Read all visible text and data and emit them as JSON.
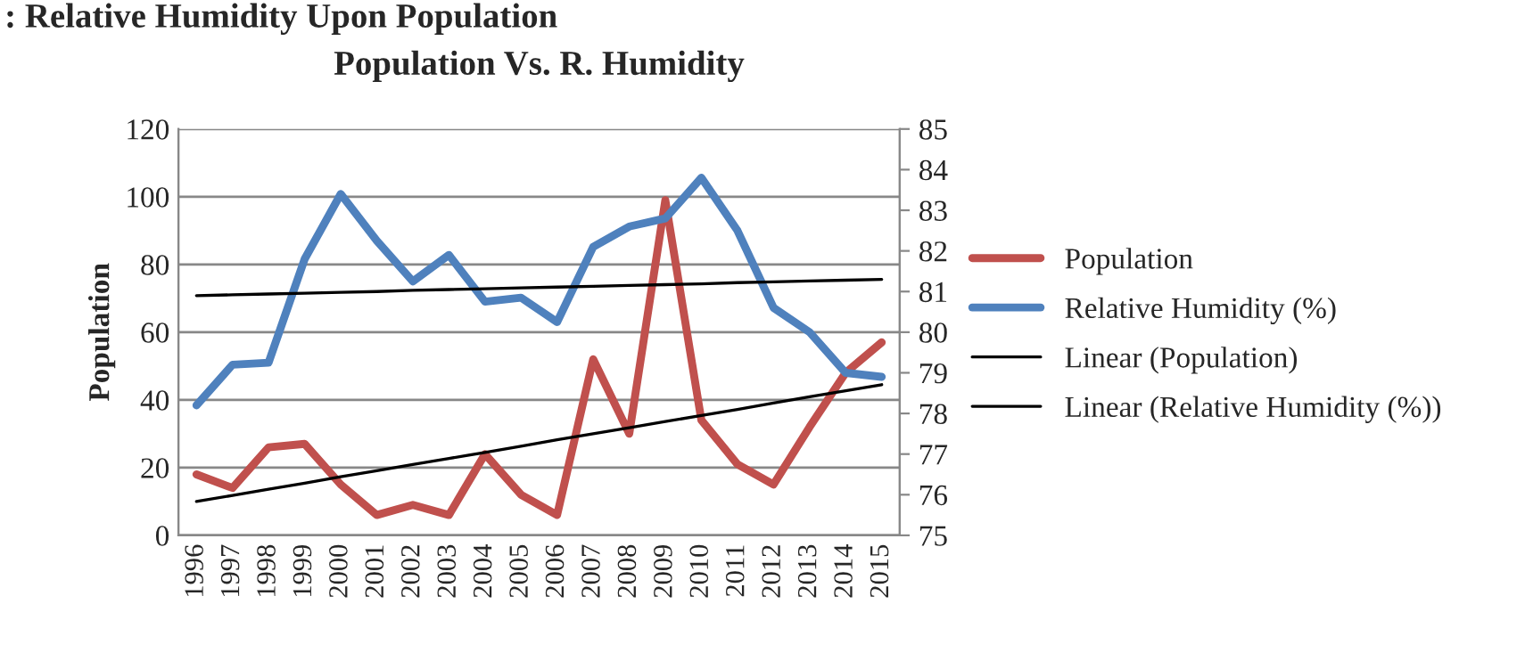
{
  "chart_data": {
    "type": "line",
    "title": "Population Vs. R. Humidity",
    "ylabel": "Population",
    "annotations": [
      ": Relative Humidity Upon Population"
    ],
    "categories": [
      "1996",
      "1997",
      "1998",
      "1999",
      "2000",
      "2001",
      "2002",
      "2003",
      "2004",
      "2005",
      "2006",
      "2007",
      "2008",
      "2009",
      "2010",
      "2011",
      "2012",
      "2013",
      "2014",
      "2015"
    ],
    "series": [
      {
        "name": "Population",
        "color": "#c0504d",
        "values": [
          18,
          14,
          26,
          27,
          15,
          6,
          9,
          6,
          24,
          12,
          6,
          52,
          30,
          99,
          34,
          21,
          15,
          32,
          48,
          57
        ]
      },
      {
        "name": "Relative Humidity (%)",
        "color": "#4f81bd",
        "axis": "y2",
        "values": [
          78.2,
          79.2,
          79.25,
          81.8,
          83.4,
          82.25,
          81.25,
          81.9,
          80.75,
          80.85,
          80.25,
          82.1,
          82.6,
          82.8,
          83.8,
          82.5,
          80.6,
          80.0,
          79.0,
          78.9
        ]
      },
      {
        "name": "Linear (Population)",
        "color": "#000000",
        "values": [
          10,
          11.8,
          13.6,
          15.4,
          17.3,
          19.1,
          20.9,
          22.7,
          24.5,
          26.3,
          28.2,
          30.0,
          31.8,
          33.6,
          35.4,
          37.2,
          39.1,
          40.9,
          42.7,
          44.5
        ]
      },
      {
        "name": "Linear (Relative Humidity (%))",
        "color": "#000000",
        "axis": "y2",
        "values": [
          80.9,
          80.92,
          80.94,
          80.96,
          80.98,
          81.0,
          81.03,
          81.05,
          81.07,
          81.09,
          81.11,
          81.13,
          81.15,
          81.17,
          81.19,
          81.22,
          81.24,
          81.26,
          81.28,
          81.3
        ]
      }
    ],
    "ylim": [
      0,
      120
    ],
    "yticks": [
      0,
      20,
      40,
      60,
      80,
      100,
      120
    ],
    "y2lim": [
      75,
      85
    ],
    "y2ticks": [
      75,
      76,
      77,
      78,
      79,
      80,
      81,
      82,
      83,
      84,
      85
    ],
    "grid": "y",
    "legend": "right",
    "marker": "none",
    "line_style": "solid"
  }
}
